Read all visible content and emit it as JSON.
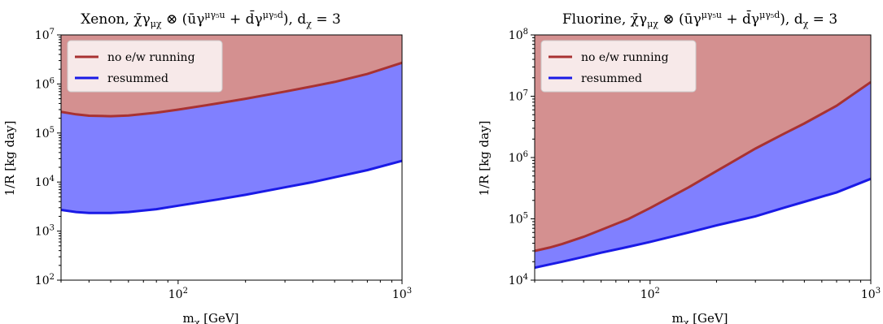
{
  "chart_data": [
    {
      "type": "area",
      "title": "Xenon, χ̄γ_μχ ⊗ (ūγ^μγ₅u + d̄γ^μγ₅d), d_χ = 3",
      "xlabel": "m_χ [GeV]",
      "ylabel": "1/R [kg day]",
      "xscale": "log",
      "yscale": "log",
      "xlim": [
        30,
        1000
      ],
      "ylim": [
        100,
        10000000
      ],
      "xticks": [
        {
          "value": 100,
          "label": "10^2"
        },
        {
          "value": 1000,
          "label": "10^3"
        }
      ],
      "yticks": [
        {
          "value": 100,
          "label": "10^2"
        },
        {
          "value": 1000,
          "label": "10^3"
        },
        {
          "value": 10000,
          "label": "10^4"
        },
        {
          "value": 100000,
          "label": "10^5"
        },
        {
          "value": 1000000,
          "label": "10^6"
        },
        {
          "value": 10000000,
          "label": "10^7"
        }
      ],
      "legend": {
        "placement": "top-left"
      },
      "x": [
        30,
        35,
        40,
        50,
        60,
        80,
        100,
        150,
        200,
        300,
        400,
        500,
        700,
        1000
      ],
      "series": [
        {
          "name": "no e/w running",
          "color": "#a83232",
          "fill": "#d49090",
          "values": [
            270000,
            240000,
            225000,
            220000,
            228000,
            260000,
            300000,
            400000,
            500000,
            700000,
            900000,
            1100000,
            1600000,
            2700000
          ]
        },
        {
          "name": "resummed",
          "color": "#1a1ae6",
          "fill": "#8080ff",
          "values": [
            2700,
            2450,
            2350,
            2350,
            2450,
            2800,
            3300,
            4400,
            5500,
            7800,
            10000,
            12500,
            17500,
            27000
          ]
        }
      ]
    },
    {
      "type": "area",
      "title": "Fluorine, χ̄γ_μχ ⊗ (ūγ^μγ₅u + d̄γ^μγ₅d), d_χ = 3",
      "xlabel": "m_χ [GeV]",
      "ylabel": "1/R [kg day]",
      "xscale": "log",
      "yscale": "log",
      "xlim": [
        30,
        1000
      ],
      "ylim": [
        10000,
        100000000
      ],
      "xticks": [
        {
          "value": 100,
          "label": "10^2"
        },
        {
          "value": 1000,
          "label": "10^3"
        }
      ],
      "yticks": [
        {
          "value": 10000,
          "label": "10^4"
        },
        {
          "value": 100000,
          "label": "10^5"
        },
        {
          "value": 1000000,
          "label": "10^6"
        },
        {
          "value": 10000000,
          "label": "10^7"
        },
        {
          "value": 100000000,
          "label": "10^8"
        }
      ],
      "legend": {
        "placement": "top-left"
      },
      "x": [
        30,
        35,
        40,
        50,
        60,
        80,
        100,
        150,
        200,
        300,
        400,
        500,
        700,
        1000
      ],
      "series": [
        {
          "name": "no e/w running",
          "color": "#a83232",
          "fill": "#d49090",
          "values": [
            30000,
            34000,
            39000,
            51000,
            66000,
            100000,
            150000,
            330000,
            600000,
            1400000,
            2400000,
            3600000,
            7000000,
            17000000
          ]
        },
        {
          "name": "resummed",
          "color": "#1a1ae6",
          "fill": "#8080ff",
          "values": [
            16000,
            18000,
            20000,
            24000,
            28000,
            35000,
            42000,
            60000,
            78000,
            110000,
            150000,
            190000,
            270000,
            450000
          ]
        }
      ]
    }
  ]
}
